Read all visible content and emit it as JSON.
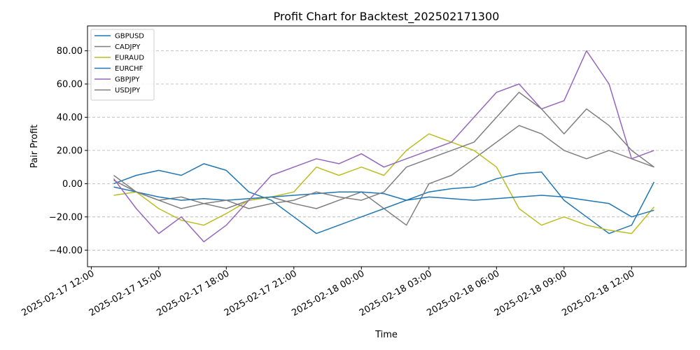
{
  "chart_data": {
    "type": "line",
    "title": "Profit Chart for Backtest_202502171300",
    "xlabel": "Time",
    "ylabel": "Pair Profit",
    "grid": "y-dashed",
    "legend_position": "top-left",
    "xlim": [
      "2025-02-17 11:50",
      "2025-02-18 14:25"
    ],
    "ylim": [
      -50,
      95
    ],
    "x_ticks": [
      "2025-02-17 12:00",
      "2025-02-17 15:00",
      "2025-02-17 18:00",
      "2025-02-17 21:00",
      "2025-02-18 00:00",
      "2025-02-18 03:00",
      "2025-02-18 06:00",
      "2025-02-18 09:00",
      "2025-02-18 12:00"
    ],
    "x_tick_labels": [
      "2025-02-17 12:00",
      "2025-02-17 15:00",
      "2025-02-17 18:00",
      "2025-02-17 21:00",
      "2025-02-18 00:00",
      "2025-02-18 03:00",
      "2025-02-18 06:00",
      "2025-02-18 09:00",
      "2025-02-18 12:00"
    ],
    "y_ticks": [
      -40,
      -20,
      0,
      20,
      40,
      60,
      80
    ],
    "y_tick_labels": [
      "−40.00",
      "−20.00",
      "0.00",
      "20.00",
      "40.00",
      "60.00",
      "80.00"
    ],
    "series": [
      {
        "name": "GBPUSD",
        "color": "#1f77b4",
        "x": [
          "2025-02-17 13:00",
          "2025-02-17 14:00",
          "2025-02-17 15:00",
          "2025-02-17 16:00",
          "2025-02-17 17:00",
          "2025-02-17 18:00",
          "2025-02-17 19:00",
          "2025-02-17 20:00",
          "2025-02-17 21:00",
          "2025-02-17 22:00",
          "2025-02-17 23:00",
          "2025-02-18 00:00",
          "2025-02-18 01:00",
          "2025-02-18 02:00",
          "2025-02-18 03:00",
          "2025-02-18 04:00",
          "2025-02-18 05:00",
          "2025-02-18 06:00",
          "2025-02-18 07:00",
          "2025-02-18 08:00",
          "2025-02-18 09:00",
          "2025-02-18 10:00",
          "2025-02-18 11:00",
          "2025-02-18 12:00",
          "2025-02-18 13:00"
        ],
        "y": [
          0,
          5,
          8,
          5,
          12,
          8,
          -5,
          -10,
          -20,
          -30,
          -25,
          -20,
          -15,
          -10,
          -5,
          -3,
          -2,
          3,
          6,
          7,
          -10,
          -20,
          -30,
          -25,
          1
        ]
      },
      {
        "name": "CADJPY",
        "color": "#7f7f7f",
        "x": [
          "2025-02-17 13:00",
          "2025-02-17 14:00",
          "2025-02-17 15:00",
          "2025-02-17 16:00",
          "2025-02-17 17:00",
          "2025-02-17 18:00",
          "2025-02-17 19:00",
          "2025-02-17 20:00",
          "2025-02-17 21:00",
          "2025-02-17 22:00",
          "2025-02-17 23:00",
          "2025-02-18 00:00",
          "2025-02-18 01:00",
          "2025-02-18 02:00",
          "2025-02-18 03:00",
          "2025-02-18 04:00",
          "2025-02-18 05:00",
          "2025-02-18 06:00",
          "2025-02-18 07:00",
          "2025-02-18 08:00",
          "2025-02-18 09:00",
          "2025-02-18 10:00",
          "2025-02-18 11:00",
          "2025-02-18 12:00",
          "2025-02-18 13:00"
        ],
        "y": [
          2,
          -5,
          -10,
          -8,
          -12,
          -15,
          -10,
          -8,
          -12,
          -15,
          -10,
          -5,
          -15,
          -25,
          0,
          5,
          15,
          25,
          35,
          30,
          20,
          15,
          20,
          15,
          10
        ]
      },
      {
        "name": "EURAUD",
        "color": "#bcbd22",
        "x": [
          "2025-02-17 13:00",
          "2025-02-17 14:00",
          "2025-02-17 15:00",
          "2025-02-17 16:00",
          "2025-02-17 17:00",
          "2025-02-17 18:00",
          "2025-02-17 19:00",
          "2025-02-17 20:00",
          "2025-02-17 21:00",
          "2025-02-17 22:00",
          "2025-02-17 23:00",
          "2025-02-18 00:00",
          "2025-02-18 01:00",
          "2025-02-18 02:00",
          "2025-02-18 03:00",
          "2025-02-18 04:00",
          "2025-02-18 05:00",
          "2025-02-18 06:00",
          "2025-02-18 07:00",
          "2025-02-18 08:00",
          "2025-02-18 09:00",
          "2025-02-18 10:00",
          "2025-02-18 11:00",
          "2025-02-18 12:00",
          "2025-02-18 13:00"
        ],
        "y": [
          -7,
          -5,
          -15,
          -22,
          -25,
          -18,
          -10,
          -8,
          -5,
          10,
          5,
          10,
          5,
          20,
          30,
          25,
          20,
          10,
          -15,
          -25,
          -20,
          -25,
          -28,
          -30,
          -14
        ]
      },
      {
        "name": "EURCHF",
        "color": "#1f77b4",
        "x": [
          "2025-02-17 13:00",
          "2025-02-17 14:00",
          "2025-02-17 15:00",
          "2025-02-17 16:00",
          "2025-02-17 17:00",
          "2025-02-17 18:00",
          "2025-02-17 19:00",
          "2025-02-17 20:00",
          "2025-02-17 21:00",
          "2025-02-17 22:00",
          "2025-02-17 23:00",
          "2025-02-18 00:00",
          "2025-02-18 01:00",
          "2025-02-18 02:00",
          "2025-02-18 03:00",
          "2025-02-18 04:00",
          "2025-02-18 05:00",
          "2025-02-18 06:00",
          "2025-02-18 07:00",
          "2025-02-18 08:00",
          "2025-02-18 09:00",
          "2025-02-18 10:00",
          "2025-02-18 11:00",
          "2025-02-18 12:00",
          "2025-02-18 13:00"
        ],
        "y": [
          -2,
          -5,
          -8,
          -10,
          -9,
          -10,
          -9,
          -8,
          -7,
          -6,
          -5,
          -5,
          -6,
          -10,
          -8,
          -9,
          -10,
          -9,
          -8,
          -7,
          -8,
          -10,
          -12,
          -20,
          -16
        ]
      },
      {
        "name": "GBPJPY",
        "color": "#9467bd",
        "x": [
          "2025-02-17 13:00",
          "2025-02-17 14:00",
          "2025-02-17 15:00",
          "2025-02-17 16:00",
          "2025-02-17 17:00",
          "2025-02-17 18:00",
          "2025-02-17 19:00",
          "2025-02-17 20:00",
          "2025-02-17 21:00",
          "2025-02-17 22:00",
          "2025-02-17 23:00",
          "2025-02-18 00:00",
          "2025-02-18 01:00",
          "2025-02-18 02:00",
          "2025-02-18 03:00",
          "2025-02-18 04:00",
          "2025-02-18 05:00",
          "2025-02-18 06:00",
          "2025-02-18 07:00",
          "2025-02-18 08:00",
          "2025-02-18 09:00",
          "2025-02-18 10:00",
          "2025-02-18 11:00",
          "2025-02-18 12:00",
          "2025-02-18 13:00"
        ],
        "y": [
          3,
          -15,
          -30,
          -20,
          -35,
          -25,
          -10,
          5,
          10,
          15,
          12,
          18,
          10,
          15,
          20,
          25,
          40,
          55,
          60,
          45,
          50,
          80,
          60,
          15,
          20
        ]
      },
      {
        "name": "USDJPY",
        "color": "#7f7f7f",
        "x": [
          "2025-02-17 13:00",
          "2025-02-17 14:00",
          "2025-02-17 15:00",
          "2025-02-17 16:00",
          "2025-02-17 17:00",
          "2025-02-17 18:00",
          "2025-02-17 19:00",
          "2025-02-17 20:00",
          "2025-02-17 21:00",
          "2025-02-17 22:00",
          "2025-02-17 23:00",
          "2025-02-18 00:00",
          "2025-02-18 01:00",
          "2025-02-18 02:00",
          "2025-02-18 03:00",
          "2025-02-18 04:00",
          "2025-02-18 05:00",
          "2025-02-18 06:00",
          "2025-02-18 07:00",
          "2025-02-18 08:00",
          "2025-02-18 09:00",
          "2025-02-18 10:00",
          "2025-02-18 11:00",
          "2025-02-18 12:00",
          "2025-02-18 13:00"
        ],
        "y": [
          5,
          -5,
          -10,
          -15,
          -12,
          -10,
          -15,
          -12,
          -10,
          -5,
          -8,
          -10,
          -5,
          10,
          15,
          20,
          25,
          40,
          55,
          45,
          30,
          45,
          35,
          20,
          10
        ]
      }
    ]
  }
}
